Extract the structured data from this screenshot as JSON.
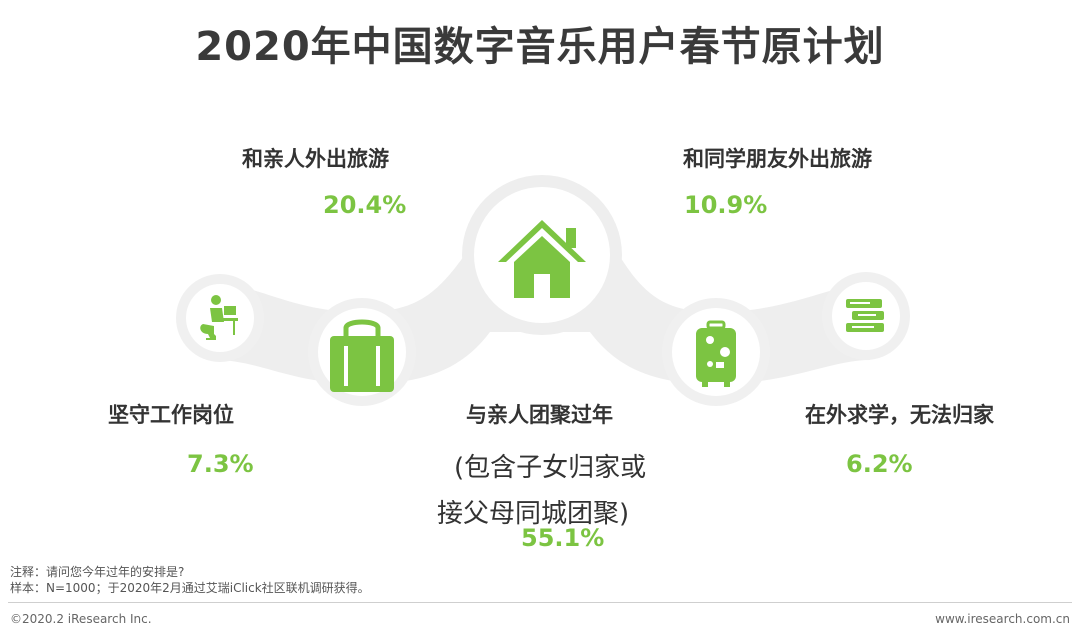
{
  "title": "2020年中国数字音乐用户春节原计划",
  "chart_data": {
    "type": "infographic",
    "title": "2020年中国数字音乐用户春节原计划",
    "items": [
      {
        "label": "坚守工作岗位",
        "value": 7.3,
        "display": "7.3%"
      },
      {
        "label": "和亲人外出旅游",
        "value": 20.4,
        "display": "20.4%"
      },
      {
        "label": "与亲人团聚过年",
        "sub_line1": "(包含子女归家或",
        "sub_line2": "接父母同城团聚)",
        "value": 55.1,
        "display": "55.1%"
      },
      {
        "label": "和同学朋友外出旅游",
        "value": 10.9,
        "display": "10.9%"
      },
      {
        "label": "在外求学，无法归家",
        "value": 6.2,
        "display": "6.2%"
      }
    ]
  },
  "colors": {
    "accent": "#7cc442",
    "band": "#eeeeee",
    "text": "#333333"
  },
  "icons": [
    "worker-at-desk-icon",
    "shopping-bag-icon",
    "house-icon",
    "luggage-icon",
    "books-icon"
  ],
  "notes": {
    "note": "注释：请问您今年过年的安排是?",
    "sample": "样本：N=1000；于2020年2月通过艾瑞iClick社区联机调研获得。"
  },
  "footer": {
    "copyright": "©2020.2 iResearch Inc.",
    "website": "www.iresearch.com.cn"
  }
}
